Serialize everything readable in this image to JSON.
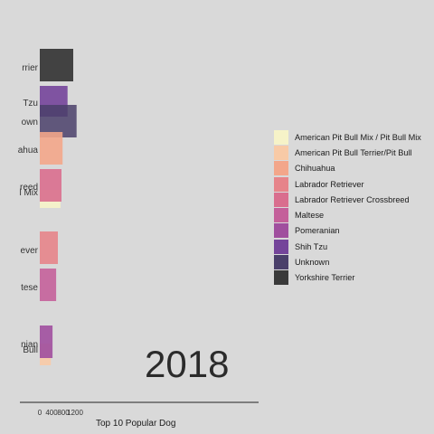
{
  "chart_data": {
    "type": "bar",
    "title": "",
    "frame_label": "2018",
    "xlabel": "Top 10 Popular Dog",
    "ylabel": "",
    "xlim": [
      0,
      1200
    ],
    "x_ticks": [
      "0",
      "400",
      "800",
      "1200"
    ],
    "legend_position": "right",
    "grid": false,
    "categories": [
      "Yorkshire Terrier",
      "Shih Tzu",
      "Unknown",
      "Chihuahua",
      "Labrador Retriever Crossbreed",
      "American Pit Bull Mix / Pit Bull Mix",
      "Labrador Retriever",
      "Maltese",
      "Pomeranian",
      "American Pit Bull Terrier/Pit Bull"
    ],
    "category_labels_visible": [
      "rrier",
      "Tzu",
      "own",
      "ahua",
      "reed",
      "l Mix",
      "ever",
      "tese",
      "nian",
      "Bull"
    ],
    "values": [
      1000,
      830,
      1100,
      680,
      650,
      620,
      540,
      490,
      380,
      330
    ],
    "legend": [
      {
        "name": "American Pit Bull Mix / Pit Bull Mix",
        "color": "#f6f3c8"
      },
      {
        "name": "American Pit Bull Terrier/Pit Bull",
        "color": "#f8caa6"
      },
      {
        "name": "Chihuahua",
        "color": "#f3a68a"
      },
      {
        "name": "Labrador Retriever",
        "color": "#e6848a"
      },
      {
        "name": "Labrador Retriever Crossbreed",
        "color": "#d96e8e"
      },
      {
        "name": "Maltese",
        "color": "#c4609a"
      },
      {
        "name": "Pomeranian",
        "color": "#a04f9e"
      },
      {
        "name": "Shih Tzu",
        "color": "#74449a"
      },
      {
        "name": "Unknown",
        "color": "#4a3f6a"
      },
      {
        "name": "Yorkshire Terrier",
        "color": "#3a3a3a"
      }
    ]
  }
}
